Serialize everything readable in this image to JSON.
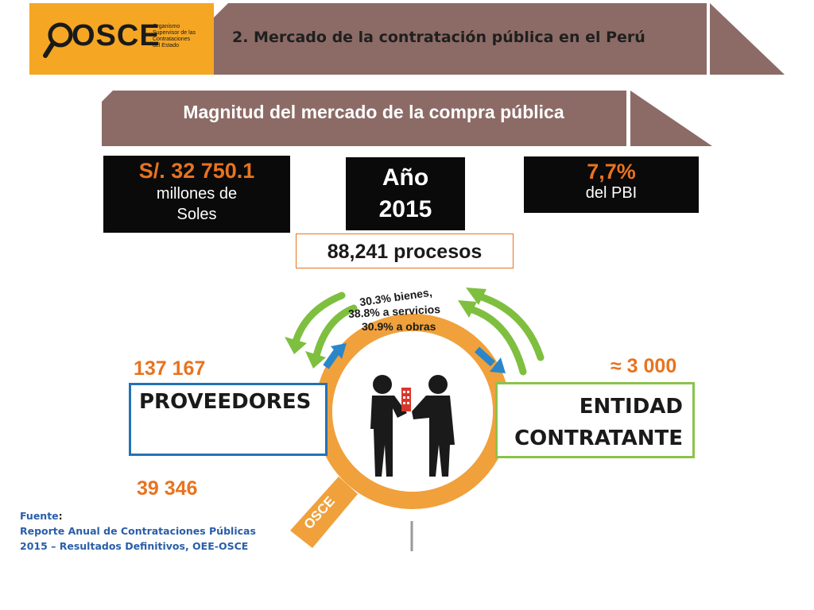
{
  "header": {
    "logo_text": "OSCE",
    "logo_subtitle": [
      "Organismo",
      "Supervisor de las",
      "Contrataciones",
      "del Estado"
    ],
    "title": "2. Mercado de la contratación pública en el Perú"
  },
  "subtitle": "Magnitud del mercado de la compra pública",
  "stats": {
    "amount_main": "S/. 32 750.1",
    "amount_sub_1": "millones de",
    "amount_sub_2": "Soles",
    "year_label": "Año",
    "year_value": "2015",
    "pbi_main": "7,7%",
    "pbi_sub": "del PBI",
    "processes": "88,241 procesos"
  },
  "distribution": {
    "bienes": "30.3% bienes,",
    "servicios": "38.8% a servicios",
    "obras": "30.9% a obras"
  },
  "providers": {
    "count_top": "137 167",
    "label": "PROVEEDORES",
    "count_bottom": "39 346"
  },
  "entities": {
    "count": "≈ 3 000",
    "label_1": "ENTIDAD",
    "label_2": "CONTRATANTE"
  },
  "magnifier_logo": "OSCE",
  "source": {
    "label": "Fuente",
    "line1": "Reporte Anual de Contrataciones Públicas",
    "line2": "2015 – Resultados Definitivos, OEE-OSCE"
  },
  "colors": {
    "orange": "#f5a623",
    "accent_orange": "#e8731f",
    "banner_brown": "#8c6b66",
    "blue": "#2472b8",
    "green": "#8bc34a",
    "source_blue": "#2a5ea8"
  },
  "icons": [
    "magnifier-logo-icon",
    "handshake-silhouette",
    "green-arrow-icon",
    "blue-arrow-icon",
    "building-icon"
  ]
}
